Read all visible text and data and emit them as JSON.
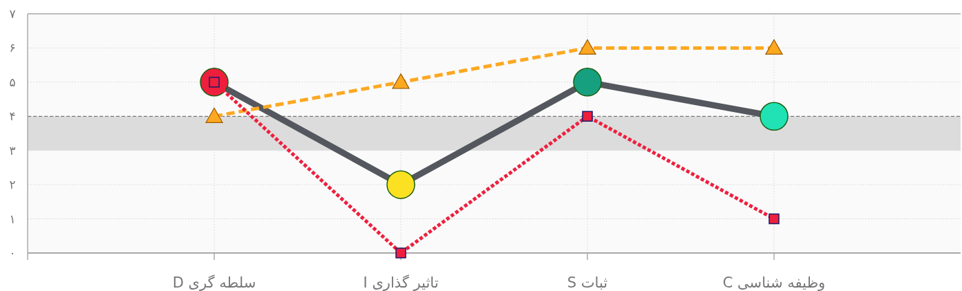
{
  "chart_data": {
    "type": "line",
    "categories": [
      "سلطه گری D",
      "تاثیر گذاری I",
      "ثبات S",
      "وظیفه شناسی C"
    ],
    "series": [
      {
        "color": "#55575f",
        "values": [
          5,
          2,
          5,
          4
        ],
        "marker": "circle",
        "line_style": "solid",
        "colors": [
          "#ee1f3d",
          "#fbe121",
          "#16a07f",
          "#20e2b4"
        ]
      },
      {
        "color": "#fca821",
        "values": [
          4,
          5,
          6,
          6
        ],
        "marker": "triangle",
        "line_style": "dashed"
      },
      {
        "color": "#ee1f3d",
        "values": [
          5,
          0,
          4,
          1
        ],
        "marker": "square",
        "line_style": "dotted"
      }
    ],
    "ylim": [
      0,
      7
    ],
    "yticks": [
      {
        "value": 0,
        "label": "۰"
      },
      {
        "value": 1,
        "label": "۱"
      },
      {
        "value": 2,
        "label": "۲"
      },
      {
        "value": 3,
        "label": "۳"
      },
      {
        "value": 4,
        "label": "۴"
      },
      {
        "value": 5,
        "label": "۵"
      },
      {
        "value": 6,
        "label": "۶"
      },
      {
        "value": 7,
        "label": "۷"
      }
    ],
    "bands": [
      {
        "axis": "y",
        "from": 3,
        "to": 4,
        "color": "#dcdcdc"
      }
    ],
    "ref_lines": [
      {
        "axis": "y",
        "value": 4,
        "color": "#777777",
        "line_style": "dotted"
      }
    ],
    "grid": true
  }
}
